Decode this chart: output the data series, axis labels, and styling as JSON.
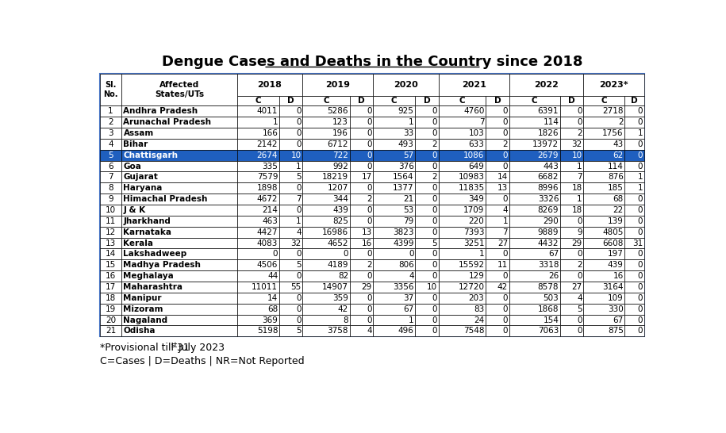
{
  "title": "Dengue Cases and Deaths in the Country since 2018",
  "footnote1": "*Provisional till 31",
  "footnote1_sup": "st",
  "footnote1_end": " July 2023",
  "footnote2": "C=Cases | D=Deaths | NR=Not Reported",
  "years": [
    "2018",
    "2019",
    "2020",
    "2021",
    "2022",
    "2023*"
  ],
  "rows": [
    [
      1,
      "Andhra Pradesh",
      4011,
      0,
      5286,
      0,
      925,
      0,
      4760,
      0,
      6391,
      0,
      2718,
      0
    ],
    [
      2,
      "Arunachal Pradesh",
      1,
      0,
      123,
      0,
      1,
      0,
      7,
      0,
      114,
      0,
      2,
      0
    ],
    [
      3,
      "Assam",
      166,
      0,
      196,
      0,
      33,
      0,
      103,
      0,
      1826,
      2,
      1756,
      1
    ],
    [
      4,
      "Bihar",
      2142,
      0,
      6712,
      0,
      493,
      2,
      633,
      2,
      13972,
      32,
      43,
      0
    ],
    [
      5,
      "Chattisgarh",
      2674,
      10,
      722,
      0,
      57,
      0,
      1086,
      0,
      2679,
      10,
      62,
      0
    ],
    [
      6,
      "Goa",
      335,
      1,
      992,
      0,
      376,
      0,
      649,
      0,
      443,
      1,
      114,
      0
    ],
    [
      7,
      "Gujarat",
      7579,
      5,
      18219,
      17,
      1564,
      2,
      10983,
      14,
      6682,
      7,
      876,
      1
    ],
    [
      8,
      "Haryana",
      1898,
      0,
      1207,
      0,
      1377,
      0,
      11835,
      13,
      8996,
      18,
      185,
      1
    ],
    [
      9,
      "Himachal Pradesh",
      4672,
      7,
      344,
      2,
      21,
      0,
      349,
      0,
      3326,
      1,
      68,
      0
    ],
    [
      10,
      "J & K",
      214,
      0,
      439,
      0,
      53,
      0,
      1709,
      4,
      8269,
      18,
      22,
      0
    ],
    [
      11,
      "Jharkhand",
      463,
      1,
      825,
      0,
      79,
      0,
      220,
      1,
      290,
      0,
      139,
      0
    ],
    [
      12,
      "Karnataka",
      4427,
      4,
      16986,
      13,
      3823,
      0,
      7393,
      7,
      9889,
      9,
      4805,
      0
    ],
    [
      13,
      "Kerala",
      4083,
      32,
      4652,
      16,
      4399,
      5,
      3251,
      27,
      4432,
      29,
      6608,
      31
    ],
    [
      14,
      "Lakshadweep",
      0,
      0,
      0,
      0,
      0,
      0,
      1,
      0,
      67,
      0,
      197,
      0
    ],
    [
      15,
      "Madhya Pradesh",
      4506,
      5,
      4189,
      2,
      806,
      0,
      15592,
      11,
      3318,
      2,
      439,
      0
    ],
    [
      16,
      "Meghalaya",
      44,
      0,
      82,
      0,
      4,
      0,
      129,
      0,
      26,
      0,
      16,
      0
    ],
    [
      17,
      "Maharashtra",
      11011,
      55,
      14907,
      29,
      3356,
      10,
      12720,
      42,
      8578,
      27,
      3164,
      0
    ],
    [
      18,
      "Manipur",
      14,
      0,
      359,
      0,
      37,
      0,
      203,
      0,
      503,
      4,
      109,
      0
    ],
    [
      19,
      "Mizoram",
      68,
      0,
      42,
      0,
      67,
      0,
      83,
      0,
      1868,
      5,
      330,
      0
    ],
    [
      20,
      "Nagaland",
      369,
      0,
      8,
      0,
      1,
      0,
      24,
      0,
      154,
      0,
      67,
      0
    ],
    [
      21,
      "Odisha",
      5198,
      5,
      3758,
      4,
      496,
      0,
      7548,
      0,
      7063,
      0,
      875,
      0
    ]
  ],
  "highlight_row": 4,
  "highlight_color": "#1F5FBF",
  "highlight_text_color": "#FFFFFF",
  "table_bg": "#FFFFFF",
  "header_bg": "#FFFFFF",
  "border_color": "#000000",
  "outer_border_color": "#4472C4",
  "text_color": "#000000",
  "title_color": "#000000"
}
